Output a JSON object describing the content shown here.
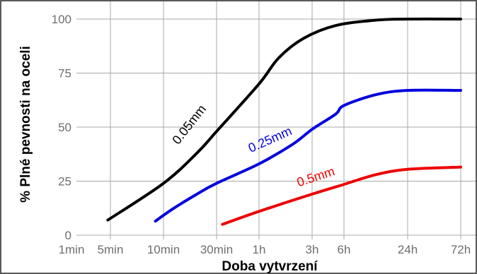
{
  "chart_data": {
    "type": "line",
    "xlabel": "Doba vytvrzení",
    "ylabel": "% Plné pevnosti na oceli",
    "x_scale": "log",
    "x_ticks": [
      {
        "label": "1min",
        "minutes": 1
      },
      {
        "label": "5min",
        "minutes": 5
      },
      {
        "label": "10min",
        "minutes": 10
      },
      {
        "label": "30min",
        "minutes": 30
      },
      {
        "label": "1h",
        "minutes": 60
      },
      {
        "label": "3h",
        "minutes": 180
      },
      {
        "label": "6h",
        "minutes": 360
      },
      {
        "label": "24h",
        "minutes": 1440
      },
      {
        "label": "72h",
        "minutes": 4320
      }
    ],
    "y_ticks": [
      0,
      25,
      50,
      75,
      100
    ],
    "ylim": [
      0,
      100
    ],
    "grid": true,
    "series": [
      {
        "name": "0.05mm",
        "color": "#000000",
        "points": [
          [
            4.5,
            7
          ],
          [
            10,
            24
          ],
          [
            20,
            38
          ],
          [
            30,
            48
          ],
          [
            60,
            70
          ],
          [
            90,
            82
          ],
          [
            150,
            91
          ],
          [
            300,
            97
          ],
          [
            720,
            99.5
          ],
          [
            1440,
            100
          ],
          [
            4320,
            100
          ]
        ]
      },
      {
        "name": "0.25mm",
        "color": "#0000dd",
        "points": [
          [
            9,
            6.5
          ],
          [
            12,
            12
          ],
          [
            20,
            19
          ],
          [
            30,
            24
          ],
          [
            60,
            33
          ],
          [
            120,
            42
          ],
          [
            180,
            49
          ],
          [
            300,
            56
          ],
          [
            360,
            60
          ],
          [
            720,
            65
          ],
          [
            1440,
            67
          ],
          [
            4320,
            67
          ]
        ]
      },
      {
        "name": "0.5mm",
        "color": "#ee0000",
        "points": [
          [
            33,
            5
          ],
          [
            60,
            11
          ],
          [
            180,
            19
          ],
          [
            360,
            23.5
          ],
          [
            720,
            28
          ],
          [
            1440,
            30.5
          ],
          [
            4320,
            31.5
          ]
        ]
      }
    ]
  }
}
